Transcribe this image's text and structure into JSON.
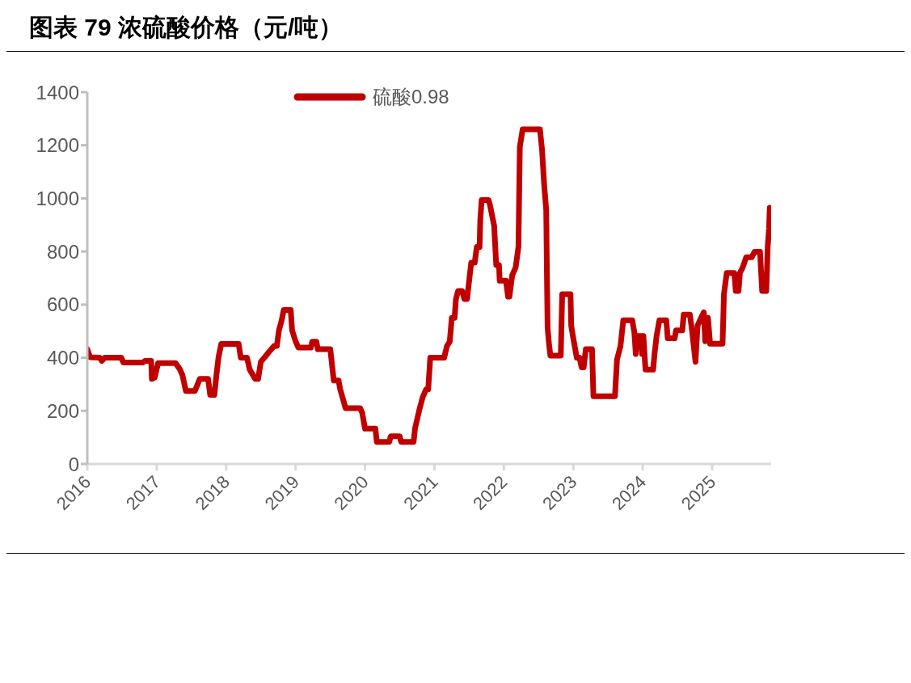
{
  "chart_data": {
    "type": "line",
    "title": "图表 79 浓硫酸价格（元/吨）",
    "xlim": [
      2016,
      2025.85
    ],
    "xticks": [
      2016,
      2017,
      2018,
      2019,
      2020,
      2021,
      2022,
      2023,
      2024,
      2025
    ],
    "ylim": [
      0,
      1400
    ],
    "yticks": [
      0,
      200,
      400,
      600,
      800,
      1000,
      1200,
      1400
    ],
    "grid": false,
    "legend": "top",
    "marker": "none",
    "line_style": "solid",
    "series": [
      {
        "name": "硫酸0.98",
        "color": "#c00000",
        "x": [
          2016.0,
          2016.04,
          2016.18,
          2016.21,
          2016.25,
          2016.49,
          2016.52,
          2016.8,
          2016.83,
          2016.92,
          2016.93,
          2016.97,
          2017.02,
          2017.27,
          2017.33,
          2017.37,
          2017.42,
          2017.55,
          2017.62,
          2017.74,
          2017.77,
          2017.83,
          2017.86,
          2017.89,
          2017.93,
          2018.18,
          2018.21,
          2018.3,
          2018.34,
          2018.42,
          2018.46,
          2018.5,
          2018.55,
          2018.61,
          2018.69,
          2018.73,
          2018.76,
          2018.8,
          2018.83,
          2018.93,
          2018.95,
          2019.0,
          2019.04,
          2019.22,
          2019.24,
          2019.3,
          2019.32,
          2019.5,
          2019.52,
          2019.55,
          2019.62,
          2019.64,
          2019.72,
          2019.93,
          2019.96,
          2020.0,
          2020.15,
          2020.17,
          2020.35,
          2020.37,
          2020.5,
          2020.52,
          2020.7,
          2020.72,
          2020.78,
          2020.83,
          2020.88,
          2020.91,
          2020.94,
          2021.14,
          2021.18,
          2021.22,
          2021.25,
          2021.29,
          2021.31,
          2021.34,
          2021.4,
          2021.43,
          2021.47,
          2021.53,
          2021.58,
          2021.61,
          2021.65,
          2021.66,
          2021.68,
          2021.78,
          2021.8,
          2021.86,
          2021.89,
          2021.93,
          2021.94,
          2022.03,
          2022.05,
          2022.06,
          2022.08,
          2022.12,
          2022.17,
          2022.21,
          2022.23,
          2022.27,
          2022.52,
          2022.55,
          2022.58,
          2022.61,
          2022.62,
          2022.63,
          2022.65,
          2022.67,
          2022.82,
          2022.84,
          2022.96,
          2022.97,
          2023.0,
          2023.05,
          2023.09,
          2023.12,
          2023.15,
          2023.18,
          2023.27,
          2023.29,
          2023.6,
          2023.63,
          2023.68,
          2023.72,
          2023.85,
          2023.88,
          2023.9,
          2023.92,
          2023.98,
          2023.99,
          2024.01,
          2024.04,
          2024.15,
          2024.17,
          2024.2,
          2024.24,
          2024.34,
          2024.36,
          2024.46,
          2024.48,
          2024.57,
          2024.59,
          2024.68,
          2024.71,
          2024.76,
          2024.79,
          2024.84,
          2024.88,
          2024.9,
          2024.94,
          2024.97,
          2025.15,
          2025.17,
          2025.21,
          2025.32,
          2025.34,
          2025.38,
          2025.4,
          2025.44,
          2025.49,
          2025.57,
          2025.61,
          2025.69,
          2025.72,
          2025.78,
          2025.8,
          2025.82,
          2025.83
        ],
        "values": [
          432,
          402,
          400,
          388,
          400,
          400,
          382,
          382,
          388,
          388,
          320,
          325,
          380,
          380,
          358,
          335,
          275,
          275,
          320,
          320,
          260,
          260,
          335,
          402,
          452,
          452,
          400,
          400,
          355,
          320,
          320,
          385,
          400,
          420,
          444,
          444,
          503,
          541,
          580,
          580,
          503,
          462,
          438,
          438,
          460,
          460,
          432,
          432,
          385,
          314,
          314,
          284,
          210,
          210,
          192,
          133,
          133,
          83,
          83,
          104,
          104,
          83,
          83,
          133,
          201,
          251,
          281,
          281,
          400,
          400,
          444,
          460,
          550,
          550,
          621,
          651,
          651,
          621,
          621,
          758,
          758,
          817,
          817,
          917,
          994,
          994,
          975,
          897,
          749,
          749,
          690,
          690,
          651,
          630,
          630,
          710,
          740,
          817,
          1193,
          1260,
          1260,
          1183,
          1053,
          956,
          719,
          512,
          453,
          408,
          408,
          639,
          639,
          521,
          473,
          400,
          400,
          364,
          364,
          432,
          432,
          255,
          255,
          394,
          444,
          541,
          541,
          494,
          414,
          482,
          482,
          414,
          482,
          355,
          355,
          414,
          482,
          541,
          541,
          473,
          473,
          503,
          503,
          562,
          562,
          503,
          385,
          521,
          550,
          571,
          462,
          550,
          453,
          453,
          639,
          719,
          719,
          651,
          651,
          719,
          740,
          778,
          778,
          799,
          799,
          651,
          651,
          817,
          888,
          965
        ]
      }
    ]
  }
}
